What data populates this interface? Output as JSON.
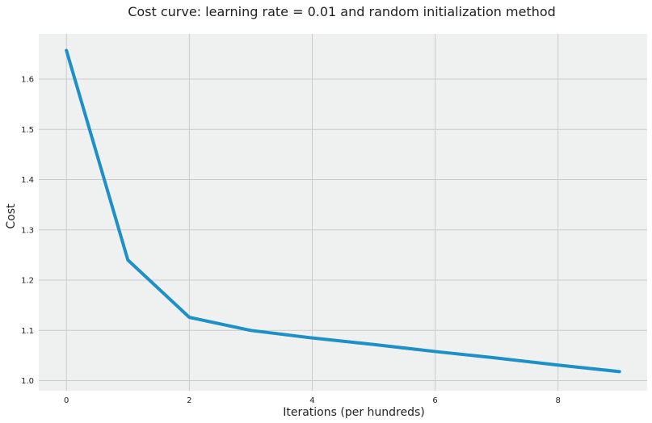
{
  "chart_data": {
    "type": "line",
    "title": "Cost curve: learning rate = 0.01 and random initialization method",
    "xlabel": "Iterations (per hundreds)",
    "ylabel": "Cost",
    "x": [
      0,
      1,
      2,
      3,
      4,
      5,
      6,
      7,
      8,
      9
    ],
    "series": [
      {
        "values": [
          1.657,
          1.24,
          1.126,
          1.1,
          1.085,
          1.072,
          1.058,
          1.045,
          1.031,
          1.018
        ]
      }
    ],
    "xticks": [
      0,
      2,
      4,
      6,
      8
    ],
    "yticks": [
      1.0,
      1.1,
      1.2,
      1.3,
      1.4,
      1.5,
      1.6
    ],
    "xtick_labels": [
      "0",
      "2",
      "4",
      "6",
      "8"
    ],
    "ytick_labels": [
      "1.0",
      "1.1",
      "1.2",
      "1.3",
      "1.4",
      "1.5",
      "1.6"
    ],
    "xlim": [
      -0.45,
      9.45
    ],
    "ylim": [
      0.98,
      1.69
    ],
    "grid": true,
    "legend": "none",
    "colors": {
      "line": "#1e90c8",
      "plot_background": "#eff1f0",
      "grid": "#cbcbcb",
      "figure_background": "#ffffff"
    }
  }
}
